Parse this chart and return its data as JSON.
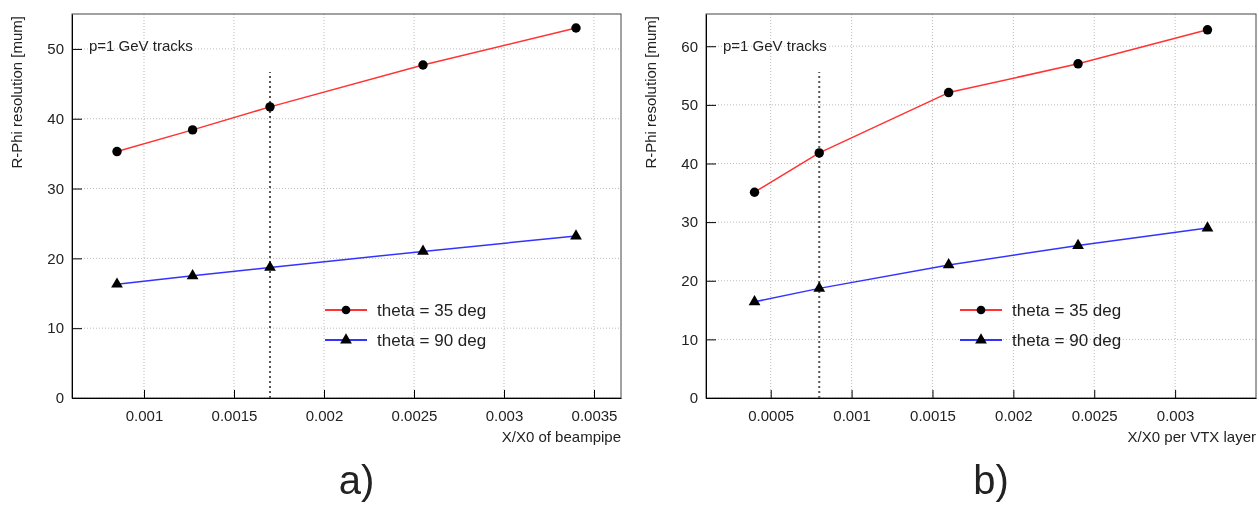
{
  "chart_data": [
    {
      "type": "line",
      "xlabel": "X/X0 of beampipe",
      "ylabel": "R-Phi resolution [mum]",
      "xlim": [
        0.0006,
        0.00365
      ],
      "xticks": [
        0.001,
        0.0015,
        0.002,
        0.0025,
        0.003,
        0.0035
      ],
      "ylim": [
        0,
        55
      ],
      "yticks": [
        0,
        10,
        20,
        30,
        40,
        50
      ],
      "grid": true,
      "legend": "bottom right",
      "x": [
        0.00085,
        0.00127,
        0.0017,
        0.00255,
        0.0034
      ],
      "series": [
        {
          "name": "theta = 35 deg",
          "color": "#ff3333",
          "marker": "circle",
          "values": [
            35.3,
            38.4,
            41.7,
            47.7,
            53.0
          ]
        },
        {
          "name": "theta = 90 deg",
          "color": "#3333ff",
          "marker": "triangle",
          "values": [
            16.3,
            17.5,
            18.7,
            21.0,
            23.2
          ]
        }
      ],
      "ref_lines": [
        {
          "axis": "x",
          "value": 0.0017,
          "color": "#555555",
          "line_style": "dotted"
        }
      ],
      "annotations": [
        "p=1 GeV tracks",
        "a)"
      ]
    },
    {
      "type": "line",
      "xlabel": "X/X0 per VTX layer",
      "ylabel": "R-Phi resolution [mum]",
      "xlim": [
        0.0001,
        0.0035
      ],
      "xticks": [
        0.0005,
        0.001,
        0.0015,
        0.002,
        0.0025,
        0.003
      ],
      "ylim": [
        0,
        65.5
      ],
      "yticks": [
        0,
        10,
        20,
        30,
        40,
        50,
        60
      ],
      "grid": true,
      "legend": "bottom right",
      "x": [
        0.0004,
        0.0008,
        0.0016,
        0.0024,
        0.0032
      ],
      "series": [
        {
          "name": "theta = 35 deg",
          "color": "#ff3333",
          "marker": "circle",
          "values": [
            35.1,
            41.8,
            52.1,
            57.0,
            62.8
          ]
        },
        {
          "name": "theta = 90 deg",
          "color": "#3333ff",
          "marker": "triangle",
          "values": [
            16.4,
            18.7,
            22.7,
            26.0,
            29.0
          ]
        }
      ],
      "ref_lines": [
        {
          "axis": "x",
          "value": 0.0008,
          "color": "#555555",
          "line_style": "dotted"
        }
      ],
      "annotations": [
        "p=1 GeV tracks",
        "b)"
      ]
    }
  ]
}
